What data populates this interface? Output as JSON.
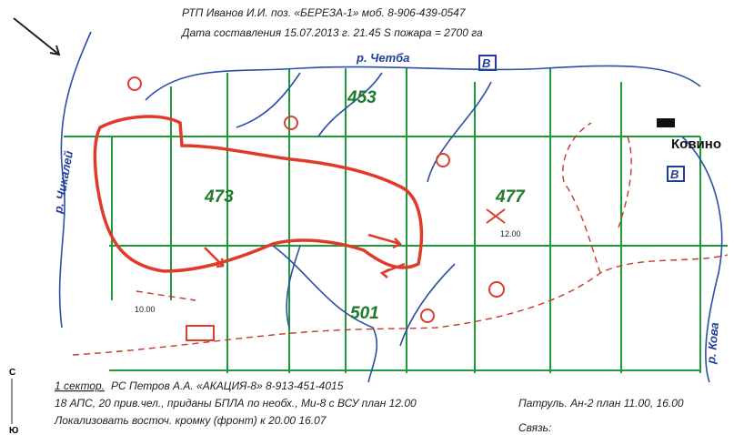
{
  "header": {
    "line1": "РТП Иванов И.И.  поз. «БЕРЕЗА-1»  моб. 8-906-439-0547",
    "line2": "Дата составления 15.07.2013 г. 21.45    S пожара = 2700 га"
  },
  "map": {
    "river_labels": [
      "р. Четба",
      "р. Чикалей",
      "р. Кова"
    ],
    "quarters": [
      "453",
      "473",
      "477",
      "501"
    ],
    "village": "Ковино",
    "markers": [
      "В",
      "В"
    ],
    "times": [
      "12.00",
      "10.00"
    ],
    "compass": [
      "С",
      "Ю"
    ]
  },
  "footer": {
    "sector_label": "1 сектор.",
    "sector_text": "РС Петров А.А. «АКАЦИЯ-8» 8-913-451-4015",
    "line2": "18 АПС, 20 прив.чел., приданы БПЛА по необх., Ми-8 с ВСУ план 12.00",
    "line3": "Локализовать восточ. кромку (фронт) к 20.00 16.07",
    "patrol": "Патруль. Ан-2 план 11.00, 16.00",
    "comm": "Связь:"
  }
}
